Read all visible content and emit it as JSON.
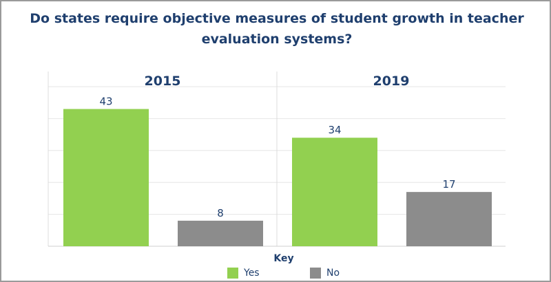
{
  "chart_data": {
    "type": "bar",
    "title": "Do states require objective measures of student growth in teacher evaluation systems?",
    "panels": [
      "2015",
      "2019"
    ],
    "categories": [
      "Yes",
      "No"
    ],
    "series": [
      {
        "name": "2015",
        "values": [
          43,
          8
        ]
      },
      {
        "name": "2019",
        "values": [
          34,
          17
        ]
      }
    ],
    "ylim": [
      0,
      50
    ],
    "grid": true,
    "colors": {
      "Yes": "#92d050",
      "No": "#8c8c8c"
    },
    "legend": {
      "title": "Key",
      "position": "bottom",
      "items": [
        "Yes",
        "No"
      ]
    }
  }
}
